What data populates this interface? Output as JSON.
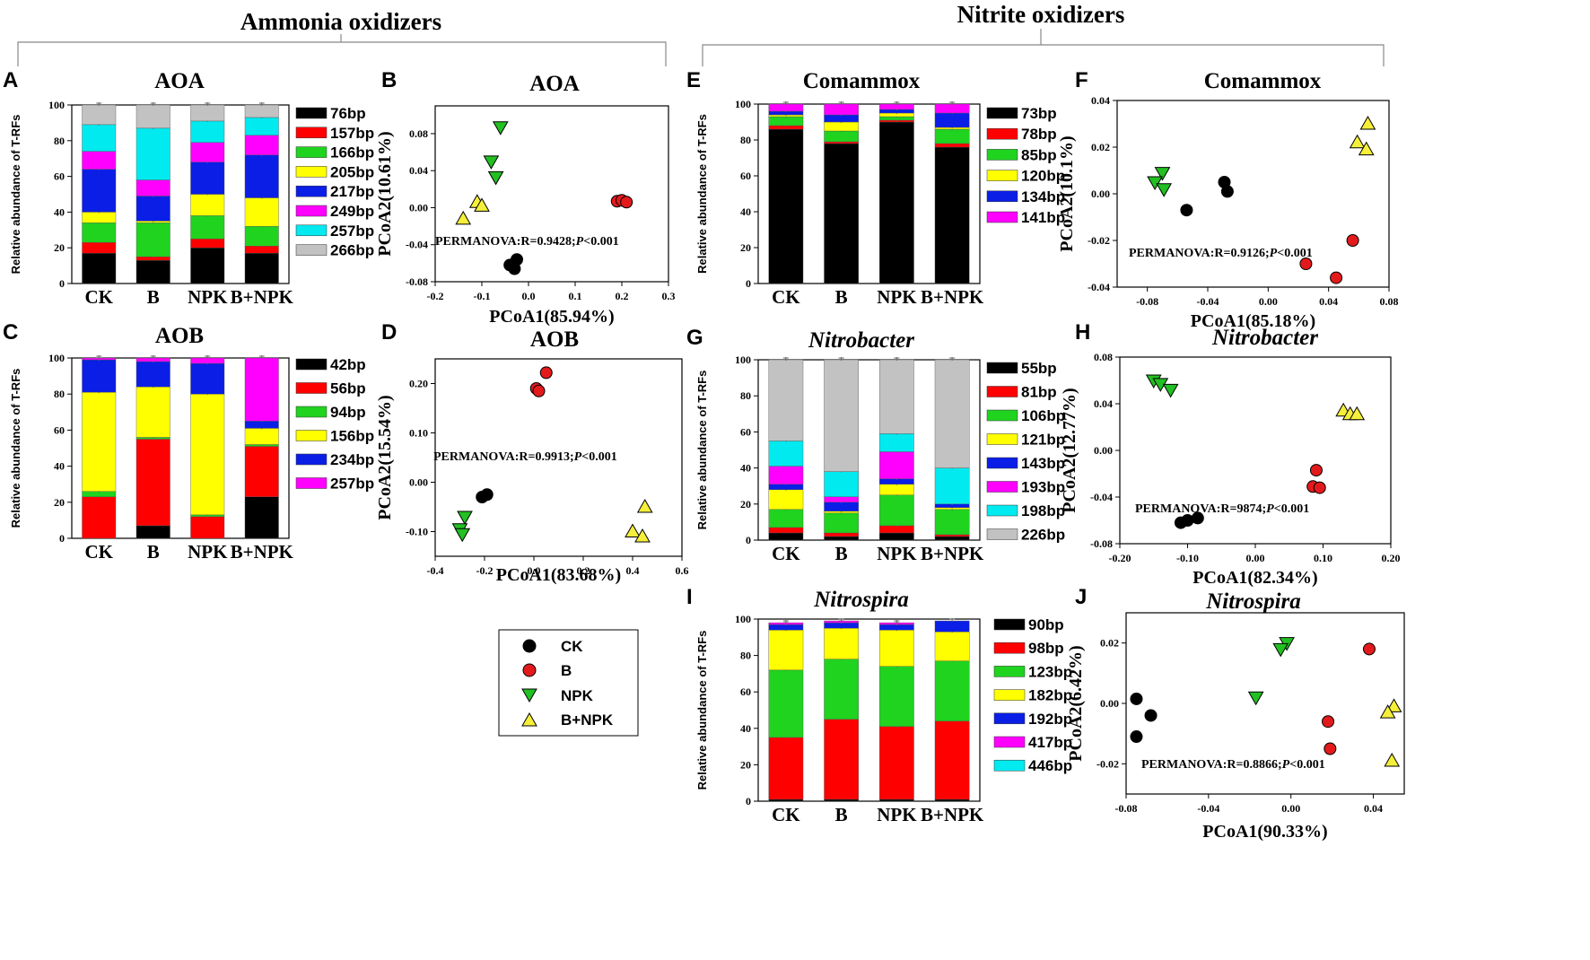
{
  "figure": {
    "group_ammonia": "Ammonia oxidizers",
    "group_nitrite": "Nitrite oxidizers",
    "ylabel_bar": "Relative abundance of T-RFs"
  },
  "legend": {
    "entries": [
      {
        "label": "CK",
        "color": "#000000",
        "marker": "circle"
      },
      {
        "label": "B",
        "color": "#e31a1c",
        "marker": "circle"
      },
      {
        "label": "NPK",
        "color": "#22c022",
        "marker": "triangle-down"
      },
      {
        "label": "B+NPK",
        "color": "#f5ef3a",
        "marker": "triangle-up"
      }
    ]
  },
  "chart_data": [
    {
      "panel": "A",
      "type": "bar",
      "stacked": true,
      "title": "AOA",
      "italic": false,
      "categories": [
        "CK",
        "B",
        "NPK",
        "B+NPK"
      ],
      "ylabel": "Relative abundance of T-RFs",
      "ylim": [
        0,
        100
      ],
      "yticks": [
        0,
        20,
        40,
        60,
        80,
        100
      ],
      "series": [
        {
          "name": "76bp",
          "color": "#000000",
          "values": [
            17,
            13,
            20,
            17
          ]
        },
        {
          "name": "157bp",
          "color": "#ff0000",
          "values": [
            6,
            2,
            5,
            4
          ]
        },
        {
          "name": "166bp",
          "color": "#1fd31f",
          "values": [
            11,
            19,
            13,
            11
          ]
        },
        {
          "name": "205bp",
          "color": "#ffff00",
          "values": [
            6,
            1,
            12,
            16
          ]
        },
        {
          "name": "217bp",
          "color": "#0a1ee6",
          "values": [
            24,
            14,
            18,
            24
          ]
        },
        {
          "name": "249bp",
          "color": "#ff00ff",
          "values": [
            10,
            9,
            11,
            11
          ]
        },
        {
          "name": "257bp",
          "color": "#00eaf0",
          "values": [
            15,
            29,
            12,
            10
          ]
        },
        {
          "name": "266bp",
          "color": "#c2c2c2",
          "values": [
            11,
            13,
            9,
            7
          ]
        }
      ]
    },
    {
      "panel": "B",
      "type": "scatter",
      "title": "AOA",
      "italic": false,
      "xlabel": "PCoA1(85.94%)",
      "ylabel": "PCoA2(10.61%)",
      "xlim": [
        -0.2,
        0.3
      ],
      "ylim": [
        -0.08,
        0.11
      ],
      "xticks": [
        "-0.2",
        "-0.1",
        "0.0",
        "0.1",
        "0.2",
        "0.3"
      ],
      "yticks": [
        "-0.08",
        "-0.04",
        "0.00",
        "0.04",
        "0.08"
      ],
      "annotation": {
        "text": "PERMANOVA:R=0.9428;",
        "p": "P",
        "rest": "<0.001"
      },
      "groups": [
        {
          "name": "CK",
          "points": [
            [
              -0.04,
              -0.062
            ],
            [
              -0.03,
              -0.066
            ],
            [
              -0.025,
              -0.056
            ]
          ]
        },
        {
          "name": "B",
          "points": [
            [
              0.19,
              0.007
            ],
            [
              0.2,
              0.008
            ],
            [
              0.21,
              0.006
            ]
          ]
        },
        {
          "name": "NPK",
          "points": [
            [
              -0.06,
              0.087
            ],
            [
              -0.08,
              0.05
            ],
            [
              -0.07,
              0.033
            ]
          ]
        },
        {
          "name": "B+NPK",
          "points": [
            [
              -0.14,
              -0.012
            ],
            [
              -0.11,
              0.006
            ],
            [
              -0.1,
              0.002
            ]
          ]
        }
      ]
    },
    {
      "panel": "C",
      "type": "bar",
      "stacked": true,
      "title": "AOB",
      "italic": false,
      "categories": [
        "CK",
        "B",
        "NPK",
        "B+NPK"
      ],
      "ylabel": "Relative abundance of T-RFs",
      "ylim": [
        0,
        100
      ],
      "yticks": [
        0,
        20,
        40,
        60,
        80,
        100
      ],
      "series": [
        {
          "name": "42bp",
          "color": "#000000",
          "values": [
            0,
            7,
            0,
            23
          ]
        },
        {
          "name": "56bp",
          "color": "#ff0000",
          "values": [
            23,
            48,
            12,
            28
          ]
        },
        {
          "name": "94bp",
          "color": "#1fd31f",
          "values": [
            3,
            1,
            1,
            1
          ]
        },
        {
          "name": "156bp",
          "color": "#ffff00",
          "values": [
            55,
            28,
            67,
            9
          ]
        },
        {
          "name": "234bp",
          "color": "#0a1ee6",
          "values": [
            18,
            14,
            17,
            4
          ]
        },
        {
          "name": "257bp",
          "color": "#ff00ff",
          "values": [
            1,
            2,
            3,
            35
          ]
        }
      ]
    },
    {
      "panel": "D",
      "type": "scatter",
      "title": "AOB",
      "italic": false,
      "xlabel": "PCoA1(83.68%)",
      "ylabel": "PCoA2(15.54%)",
      "xlim": [
        -0.4,
        0.6
      ],
      "ylim": [
        -0.15,
        0.25
      ],
      "xticks": [
        "-0.4",
        "-0.2",
        "0.0",
        "0.2",
        "0.4",
        "0.6"
      ],
      "yticks": [
        "-0.10",
        "0.00",
        "0.10",
        "0.20"
      ],
      "annotation": {
        "text": "PERMANOVA:R=0.9913;",
        "p": "P",
        "rest": "<0.001"
      },
      "groups": [
        {
          "name": "CK",
          "points": [
            [
              -0.21,
              -0.03
            ],
            [
              -0.19,
              -0.025
            ]
          ]
        },
        {
          "name": "B",
          "points": [
            [
              0.01,
              0.19
            ],
            [
              0.02,
              0.185
            ],
            [
              0.05,
              0.222
            ]
          ]
        },
        {
          "name": "NPK",
          "points": [
            [
              -0.28,
              -0.07
            ],
            [
              -0.3,
              -0.095
            ],
            [
              -0.29,
              -0.105
            ]
          ]
        },
        {
          "name": "B+NPK",
          "points": [
            [
              0.45,
              -0.05
            ],
            [
              0.4,
              -0.1
            ],
            [
              0.44,
              -0.11
            ]
          ]
        }
      ]
    },
    {
      "panel": "E",
      "type": "bar",
      "stacked": true,
      "title": "Comammox",
      "italic": false,
      "categories": [
        "CK",
        "B",
        "NPK",
        "B+NPK"
      ],
      "ylabel": "Relative abundance of T-RFs",
      "ylim": [
        0,
        100
      ],
      "yticks": [
        0,
        20,
        40,
        60,
        80,
        100
      ],
      "series": [
        {
          "name": "73bp",
          "color": "#000000",
          "values": [
            86,
            78,
            90,
            76
          ]
        },
        {
          "name": "78bp",
          "color": "#ff0000",
          "values": [
            2,
            1,
            1,
            2
          ]
        },
        {
          "name": "85bp",
          "color": "#1fd31f",
          "values": [
            5,
            6,
            2,
            8
          ]
        },
        {
          "name": "120bp",
          "color": "#ffff00",
          "values": [
            1,
            5,
            2,
            1
          ]
        },
        {
          "name": "134bp",
          "color": "#0a1ee6",
          "values": [
            2,
            4,
            2,
            8
          ]
        },
        {
          "name": "141bp",
          "color": "#ff00ff",
          "values": [
            4,
            6,
            3,
            5
          ]
        }
      ]
    },
    {
      "panel": "F",
      "type": "scatter",
      "title": "Comammox",
      "italic": false,
      "xlabel": "PCoA1(85.18%)",
      "ylabel": "PCoA2(10.1%)",
      "xlim": [
        -0.1,
        0.08
      ],
      "ylim": [
        -0.04,
        0.04
      ],
      "xticks": [
        "-0.08",
        "-0.04",
        "0.00",
        "0.04",
        "0.08"
      ],
      "yticks": [
        "-0.04",
        "-0.02",
        "0.00",
        "0.02",
        "0.04"
      ],
      "annotation": {
        "text": "PERMANOVA:R=0.9126;",
        "p": "P",
        "rest": "<0.001"
      },
      "groups": [
        {
          "name": "CK",
          "points": [
            [
              -0.029,
              0.005
            ],
            [
              -0.027,
              0.001
            ],
            [
              -0.054,
              -0.007
            ]
          ]
        },
        {
          "name": "B",
          "points": [
            [
              0.056,
              -0.02
            ],
            [
              0.025,
              -0.03
            ],
            [
              0.045,
              -0.036
            ]
          ]
        },
        {
          "name": "NPK",
          "points": [
            [
              -0.07,
              0.009
            ],
            [
              -0.075,
              0.005
            ],
            [
              -0.069,
              0.002
            ]
          ]
        },
        {
          "name": "B+NPK",
          "points": [
            [
              0.066,
              0.03
            ],
            [
              0.059,
              0.022
            ],
            [
              0.065,
              0.019
            ]
          ]
        }
      ]
    },
    {
      "panel": "G",
      "type": "bar",
      "stacked": true,
      "title": "Nitrobacter",
      "italic": true,
      "categories": [
        "CK",
        "B",
        "NPK",
        "B+NPK"
      ],
      "ylabel": "Relative abundance of T-RFs",
      "ylim": [
        0,
        100
      ],
      "yticks": [
        0,
        20,
        40,
        60,
        80,
        100
      ],
      "series": [
        {
          "name": "55bp",
          "color": "#000000",
          "values": [
            4,
            2,
            4,
            2
          ]
        },
        {
          "name": "81bp",
          "color": "#ff0000",
          "values": [
            3,
            2,
            4,
            1
          ]
        },
        {
          "name": "106bp",
          "color": "#1fd31f",
          "values": [
            10,
            11,
            17,
            14
          ]
        },
        {
          "name": "121bp",
          "color": "#ffff00",
          "values": [
            11,
            1,
            6,
            1
          ]
        },
        {
          "name": "143bp",
          "color": "#0a1ee6",
          "values": [
            3,
            5,
            3,
            2
          ]
        },
        {
          "name": "193bp",
          "color": "#ff00ff",
          "values": [
            10,
            3,
            15,
            0
          ]
        },
        {
          "name": "198bp",
          "color": "#00eaf0",
          "values": [
            14,
            14,
            10,
            20
          ]
        },
        {
          "name": "226bp",
          "color": "#c2c2c2",
          "values": [
            45,
            62,
            41,
            60
          ]
        }
      ]
    },
    {
      "panel": "H",
      "type": "scatter",
      "title": "Nitrobacter",
      "italic": true,
      "xlabel": "PCoA1(82.34%)",
      "ylabel": "PCoA2(12.77%)",
      "xlim": [
        -0.2,
        0.2
      ],
      "ylim": [
        -0.08,
        0.08
      ],
      "xticks": [
        "-0.20",
        "-0.10",
        "0.00",
        "0.10",
        "0.20"
      ],
      "yticks": [
        "-0.08",
        "-0.04",
        "0.00",
        "0.04",
        "0.08"
      ],
      "annotation": {
        "text": "PERMANOVA:R=9874;",
        "p": "P",
        "rest": "<0.001"
      },
      "groups": [
        {
          "name": "CK",
          "points": [
            [
              -0.11,
              -0.062
            ],
            [
              -0.1,
              -0.06
            ],
            [
              -0.085,
              -0.058
            ]
          ]
        },
        {
          "name": "B",
          "points": [
            [
              0.09,
              -0.017
            ],
            [
              0.085,
              -0.031
            ],
            [
              0.095,
              -0.032
            ]
          ]
        },
        {
          "name": "NPK",
          "points": [
            [
              -0.15,
              0.06
            ],
            [
              -0.14,
              0.057
            ],
            [
              -0.125,
              0.052
            ]
          ]
        },
        {
          "name": "B+NPK",
          "points": [
            [
              0.13,
              0.034
            ],
            [
              0.14,
              0.031
            ],
            [
              0.15,
              0.031
            ]
          ]
        }
      ]
    },
    {
      "panel": "I",
      "type": "bar",
      "stacked": true,
      "title": "Nitrospira",
      "italic": true,
      "categories": [
        "CK",
        "B",
        "NPK",
        "B+NPK"
      ],
      "ylabel": "Relative abundance of T-RFs",
      "ylim": [
        0,
        100
      ],
      "yticks": [
        0,
        20,
        40,
        60,
        80,
        100
      ],
      "series": [
        {
          "name": "90bp",
          "color": "#000000",
          "values": [
            1,
            1,
            1,
            1
          ]
        },
        {
          "name": "98bp",
          "color": "#ff0000",
          "values": [
            34,
            44,
            40,
            43
          ]
        },
        {
          "name": "123bp",
          "color": "#1fd31f",
          "values": [
            37,
            33,
            33,
            33
          ]
        },
        {
          "name": "182bp",
          "color": "#ffff00",
          "values": [
            22,
            17,
            20,
            16
          ]
        },
        {
          "name": "192bp",
          "color": "#0a1ee6",
          "values": [
            3,
            3,
            3,
            6
          ]
        },
        {
          "name": "417bp",
          "color": "#ff00ff",
          "values": [
            1,
            1,
            1,
            0
          ]
        },
        {
          "name": "446bp",
          "color": "#00eaf0",
          "values": [
            0,
            0,
            0,
            0
          ]
        }
      ]
    },
    {
      "panel": "J",
      "type": "scatter",
      "title": "Nitrospira",
      "italic": true,
      "xlabel": "PCoA1(90.33%)",
      "ylabel": "PCoA2(6.42%)",
      "xlim": [
        -0.08,
        0.055
      ],
      "ylim": [
        -0.03,
        0.03
      ],
      "xticks": [
        "-0.08",
        "-0.04",
        "0.00",
        "0.04"
      ],
      "yticks": [
        "-0.02",
        "0.00",
        "0.02"
      ],
      "annotation": {
        "text": "PERMANOVA:R=0.8866;",
        "p": "P",
        "rest": "<0.001"
      },
      "groups": [
        {
          "name": "CK",
          "points": [
            [
              -0.075,
              0.0015
            ],
            [
              -0.068,
              -0.004
            ],
            [
              -0.075,
              -0.011
            ]
          ]
        },
        {
          "name": "B",
          "points": [
            [
              0.038,
              0.018
            ],
            [
              0.018,
              -0.006
            ],
            [
              0.019,
              -0.015
            ]
          ]
        },
        {
          "name": "NPK",
          "points": [
            [
              -0.002,
              0.02
            ],
            [
              -0.005,
              0.018
            ],
            [
              -0.017,
              0.002
            ]
          ]
        },
        {
          "name": "B+NPK",
          "points": [
            [
              0.05,
              -0.001
            ],
            [
              0.047,
              -0.003
            ],
            [
              0.049,
              -0.019
            ]
          ]
        }
      ]
    }
  ]
}
